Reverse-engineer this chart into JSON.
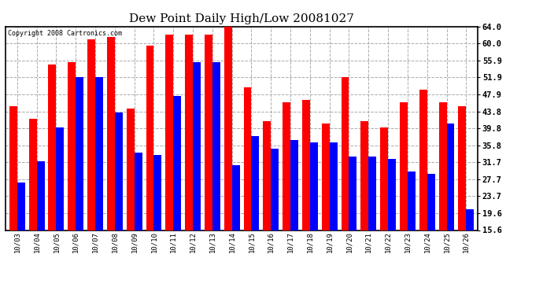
{
  "title": "Dew Point Daily High/Low 20081027",
  "copyright": "Copyright 2008 Cartronics.com",
  "dates": [
    "10/03",
    "10/04",
    "10/05",
    "10/06",
    "10/07",
    "10/08",
    "10/09",
    "10/10",
    "10/11",
    "10/12",
    "10/13",
    "10/14",
    "10/15",
    "10/16",
    "10/17",
    "10/18",
    "10/19",
    "10/20",
    "10/21",
    "10/22",
    "10/23",
    "10/24",
    "10/25",
    "10/26"
  ],
  "highs": [
    45.0,
    42.0,
    55.0,
    55.5,
    61.0,
    61.5,
    44.5,
    59.5,
    62.0,
    62.0,
    62.0,
    64.0,
    49.5,
    41.5,
    46.0,
    46.5,
    41.0,
    52.0,
    41.5,
    40.0,
    46.0,
    49.0,
    46.0,
    45.0
  ],
  "lows": [
    27.0,
    32.0,
    40.0,
    52.0,
    52.0,
    43.5,
    34.0,
    33.5,
    47.5,
    55.5,
    55.5,
    31.0,
    38.0,
    35.0,
    37.0,
    36.5,
    36.5,
    33.0,
    33.0,
    32.5,
    29.5,
    29.0,
    41.0,
    20.5
  ],
  "high_color": "#ff0000",
  "low_color": "#0000ff",
  "bg_color": "#ffffff",
  "grid_color": "#aaaaaa",
  "yticks": [
    15.6,
    19.6,
    23.7,
    27.7,
    31.7,
    35.8,
    39.8,
    43.8,
    47.9,
    51.9,
    55.9,
    60.0,
    64.0
  ],
  "ymin": 15.6,
  "ymax": 64.0,
  "bar_width": 0.4,
  "title_fontsize": 11,
  "tick_fontsize": 6.5,
  "ytick_fontsize": 7.5
}
